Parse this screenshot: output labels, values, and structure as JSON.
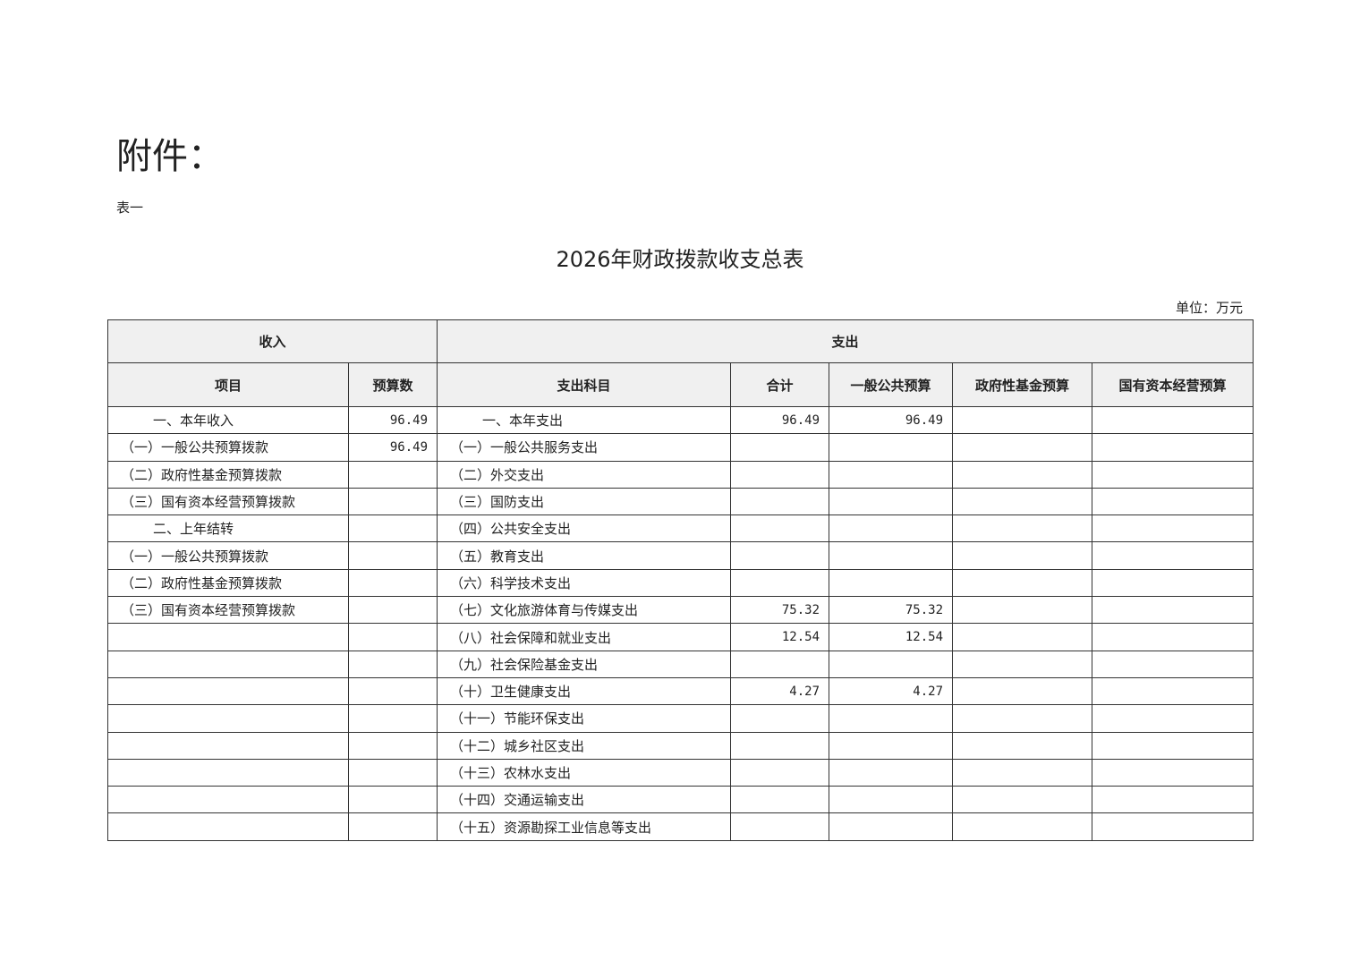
{
  "attachment_label": "附件：",
  "table_number": "表一",
  "title": "2026年财政拨款收支总表",
  "unit": "单位：万元",
  "header": {
    "income": "收入",
    "expenditure": "支出",
    "columns": [
      "项目",
      "预算数",
      "支出科目",
      "合计",
      "一般公共预算",
      "政府性基金预算",
      "国有资本经营预算"
    ]
  },
  "rows": [
    {
      "item": "一、本年收入",
      "budget": "96.49",
      "subject": "一、本年支出",
      "total": "96.49",
      "general": "96.49",
      "fund": "",
      "state": "",
      "item_indent": true,
      "subject_indent": true
    },
    {
      "item": "（一）一般公共预算拨款",
      "budget": "96.49",
      "subject": "（一）一般公共服务支出",
      "total": "",
      "general": "",
      "fund": "",
      "state": ""
    },
    {
      "item": "（二）政府性基金预算拨款",
      "budget": "",
      "subject": "（二）外交支出",
      "total": "",
      "general": "",
      "fund": "",
      "state": ""
    },
    {
      "item": "（三）国有资本经营预算拨款",
      "budget": "",
      "subject": "（三）国防支出",
      "total": "",
      "general": "",
      "fund": "",
      "state": ""
    },
    {
      "item": "二、上年结转",
      "budget": "",
      "subject": "（四）公共安全支出",
      "total": "",
      "general": "",
      "fund": "",
      "state": "",
      "item_indent": true
    },
    {
      "item": "（一）一般公共预算拨款",
      "budget": "",
      "subject": "（五）教育支出",
      "total": "",
      "general": "",
      "fund": "",
      "state": ""
    },
    {
      "item": "（二）政府性基金预算拨款",
      "budget": "",
      "subject": "（六）科学技术支出",
      "total": "",
      "general": "",
      "fund": "",
      "state": ""
    },
    {
      "item": "（三）国有资本经营预算拨款",
      "budget": "",
      "subject": "（七）文化旅游体育与传媒支出",
      "total": "75.32",
      "general": "75.32",
      "fund": "",
      "state": ""
    },
    {
      "item": "",
      "budget": "",
      "subject": "（八）社会保障和就业支出",
      "total": "12.54",
      "general": "12.54",
      "fund": "",
      "state": ""
    },
    {
      "item": "",
      "budget": "",
      "subject": "（九）社会保险基金支出",
      "total": "",
      "general": "",
      "fund": "",
      "state": ""
    },
    {
      "item": "",
      "budget": "",
      "subject": "（十）卫生健康支出",
      "total": "4.27",
      "general": "4.27",
      "fund": "",
      "state": ""
    },
    {
      "item": "",
      "budget": "",
      "subject": "（十一）节能环保支出",
      "total": "",
      "general": "",
      "fund": "",
      "state": ""
    },
    {
      "item": "",
      "budget": "",
      "subject": "（十二）城乡社区支出",
      "total": "",
      "general": "",
      "fund": "",
      "state": ""
    },
    {
      "item": "",
      "budget": "",
      "subject": "（十三）农林水支出",
      "total": "",
      "general": "",
      "fund": "",
      "state": ""
    },
    {
      "item": "",
      "budget": "",
      "subject": "（十四）交通运输支出",
      "total": "",
      "general": "",
      "fund": "",
      "state": ""
    },
    {
      "item": "",
      "budget": "",
      "subject": "（十五）资源勘探工业信息等支出",
      "total": "",
      "general": "",
      "fund": "",
      "state": ""
    }
  ]
}
